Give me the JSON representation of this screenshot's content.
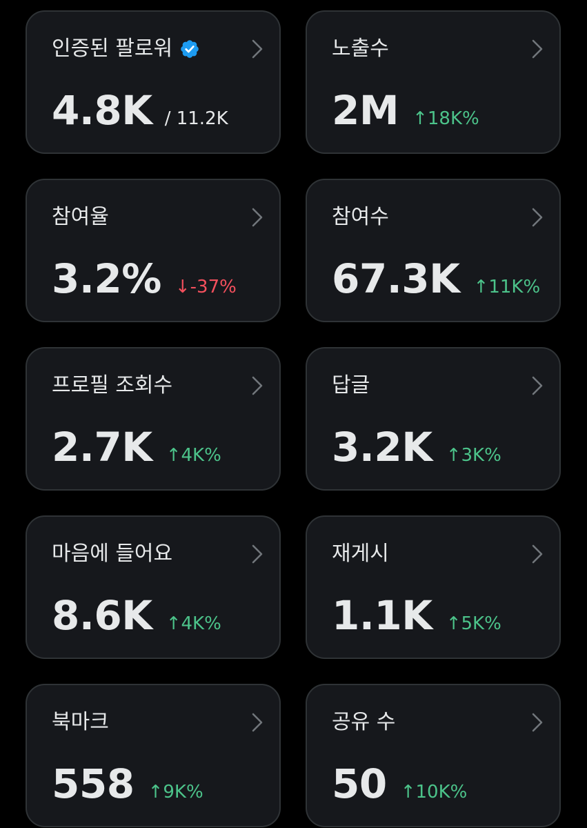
{
  "colors": {
    "background": "#000000",
    "card": "#16181c",
    "card_border": "#2f3336",
    "text": "#e7e9ea",
    "up": "#4cc38a",
    "down": "#f4505d",
    "verified": "#1d9bf0"
  },
  "cards": [
    {
      "label": "인증된 팔로워",
      "value": "4.8K",
      "total": "/ 11.2K",
      "icon": "verified-badge-icon"
    },
    {
      "label": "노출수",
      "value": "2M",
      "change": "↑18K%",
      "direction": "up"
    },
    {
      "label": "참여율",
      "value": "3.2%",
      "change": "↓-37%",
      "direction": "down"
    },
    {
      "label": "참여수",
      "value": "67.3K",
      "change": "↑11K%",
      "direction": "up"
    },
    {
      "label": "프로필 조회수",
      "value": "2.7K",
      "change": "↑4K%",
      "direction": "up"
    },
    {
      "label": "답글",
      "value": "3.2K",
      "change": "↑3K%",
      "direction": "up"
    },
    {
      "label": "마음에 들어요",
      "value": "8.6K",
      "change": "↑4K%",
      "direction": "up"
    },
    {
      "label": "재게시",
      "value": "1.1K",
      "change": "↑5K%",
      "direction": "up"
    },
    {
      "label": "북마크",
      "value": "558",
      "change": "↑9K%",
      "direction": "up"
    },
    {
      "label": "공유 수",
      "value": "50",
      "change": "↑10K%",
      "direction": "up"
    }
  ]
}
